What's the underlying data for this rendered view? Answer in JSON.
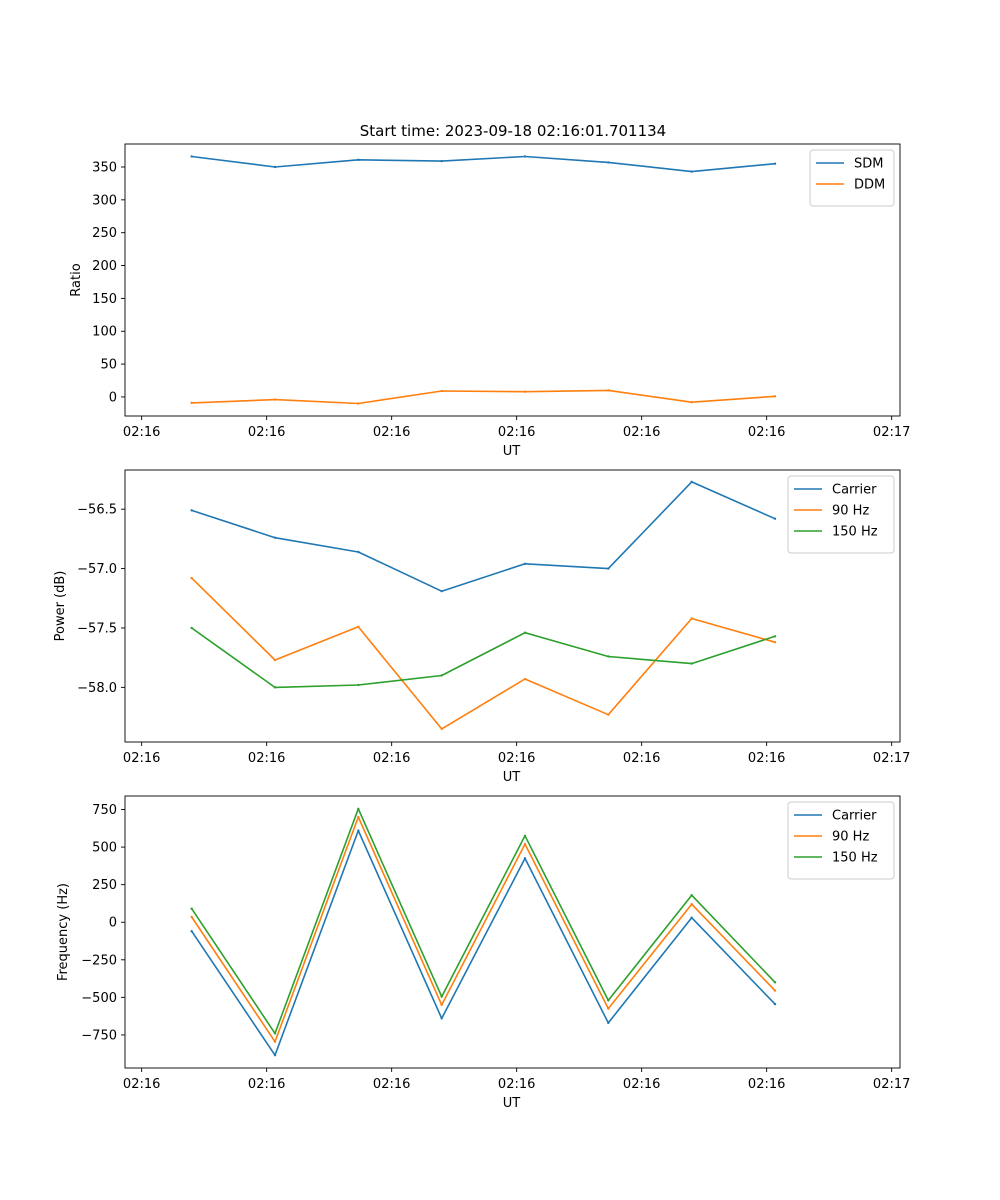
{
  "figure": {
    "title": "Start time: 2023-09-18 02:16:01.701134"
  },
  "chart_data": [
    {
      "type": "line",
      "title": "Start time: 2023-09-18 02:16:01.701134",
      "xlabel": "UT",
      "ylabel": "Ratio",
      "x_tick_labels": [
        "02:16",
        "02:16",
        "02:16",
        "02:16",
        "02:16",
        "02:16",
        "02:17"
      ],
      "xlim": [
        -0.8,
        8.5
      ],
      "ylim": [
        -29,
        385
      ],
      "yticks": [
        0,
        50,
        100,
        150,
        200,
        250,
        300,
        350
      ],
      "y_tick_labels": [
        "0",
        "50",
        "100",
        "150",
        "200",
        "250",
        "300",
        "350"
      ],
      "x": [
        0,
        1,
        2,
        3,
        4,
        5,
        6,
        7
      ],
      "legend": "top-right",
      "series": [
        {
          "name": "SDM",
          "color": "#1f77b4",
          "values": [
            366,
            350,
            361,
            359,
            366,
            357,
            343,
            355
          ]
        },
        {
          "name": "DDM",
          "color": "#ff7f0e",
          "values": [
            -9,
            -4,
            -10,
            9,
            8,
            10,
            -8,
            1
          ]
        }
      ]
    },
    {
      "type": "line",
      "title": "",
      "xlabel": "UT",
      "ylabel": "Power (dB)",
      "x_tick_labels": [
        "02:16",
        "02:16",
        "02:16",
        "02:16",
        "02:16",
        "02:16",
        "02:17"
      ],
      "xlim": [
        -0.8,
        8.5
      ],
      "ylim": [
        -58.46,
        -56.17
      ],
      "yticks": [
        -58.0,
        -57.5,
        -57.0,
        -56.5
      ],
      "y_tick_labels": [
        "−58.0",
        "−57.5",
        "−57.0",
        "−56.5"
      ],
      "x": [
        0,
        1,
        2,
        3,
        4,
        5,
        6,
        7
      ],
      "legend": "top-right",
      "series": [
        {
          "name": "Carrier",
          "color": "#1f77b4",
          "values": [
            -56.51,
            -56.74,
            -56.86,
            -57.19,
            -56.96,
            -57.0,
            -56.27,
            -56.58
          ]
        },
        {
          "name": "90 Hz",
          "color": "#ff7f0e",
          "values": [
            -57.08,
            -57.77,
            -57.49,
            -58.35,
            -57.93,
            -58.23,
            -57.42,
            -57.62
          ]
        },
        {
          "name": "150 Hz",
          "color": "#2ca02c",
          "values": [
            -57.5,
            -58.0,
            -57.98,
            -57.9,
            -57.54,
            -57.74,
            -57.8,
            -57.57
          ]
        }
      ]
    },
    {
      "type": "line",
      "title": "",
      "xlabel": "UT",
      "ylabel": "Frequency (Hz)",
      "x_tick_labels": [
        "02:16",
        "02:16",
        "02:16",
        "02:16",
        "02:16",
        "02:16",
        "02:17"
      ],
      "xlim": [
        -0.8,
        8.5
      ],
      "ylim": [
        -970,
        840
      ],
      "yticks": [
        -750,
        -500,
        -250,
        0,
        250,
        500,
        750
      ],
      "y_tick_labels": [
        "−750",
        "−500",
        "−250",
        "0",
        "250",
        "500",
        "750"
      ],
      "x": [
        0,
        1,
        2,
        3,
        4,
        5,
        6,
        7
      ],
      "legend": "top-right",
      "series": [
        {
          "name": "Carrier",
          "color": "#1f77b4",
          "values": [
            -60,
            -885,
            610,
            -640,
            425,
            -670,
            30,
            -545
          ]
        },
        {
          "name": "90 Hz",
          "color": "#ff7f0e",
          "values": [
            35,
            -795,
            700,
            -550,
            520,
            -575,
            120,
            -455
          ]
        },
        {
          "name": "150 Hz",
          "color": "#2ca02c",
          "values": [
            90,
            -740,
            755,
            -495,
            575,
            -520,
            180,
            -400
          ]
        }
      ]
    }
  ]
}
